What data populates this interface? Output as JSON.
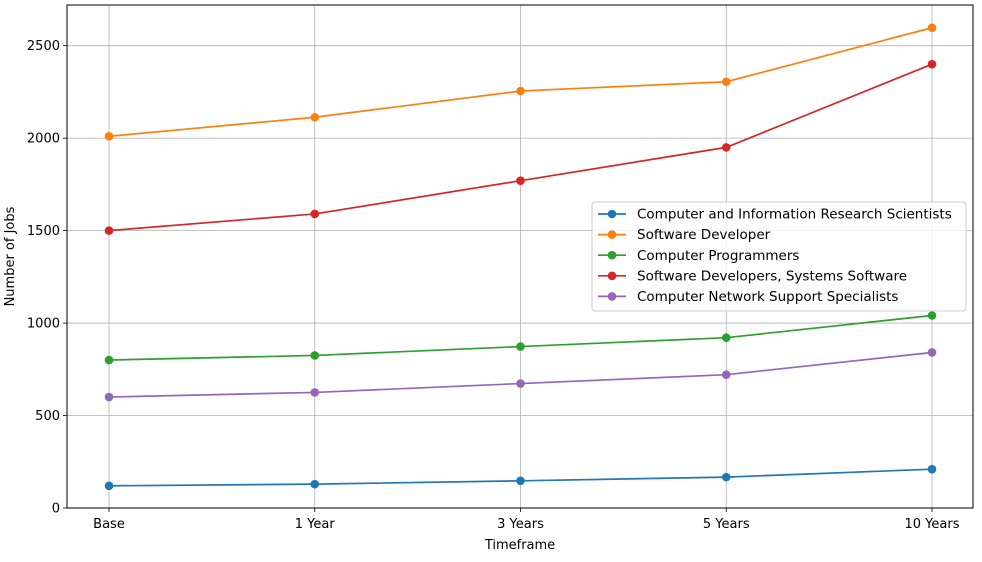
{
  "chart_data": {
    "type": "line",
    "title": "",
    "xlabel": "Timeframe",
    "ylabel": "Number of Jobs",
    "categories": [
      "Base",
      "1 Year",
      "3 Years",
      "5 Years",
      "10 Years"
    ],
    "ylim": [
      0,
      2720
    ],
    "yticks": [
      0,
      500,
      1000,
      1500,
      2000,
      2500
    ],
    "grid": true,
    "legend_position": "center-right",
    "series": [
      {
        "name": "Computer and Information Research Scientists",
        "color": "#1f77b4",
        "values": [
          120,
          129,
          147,
          167,
          210
        ]
      },
      {
        "name": "Software Developer",
        "color": "#ff7f0e",
        "values": [
          2010,
          2113,
          2255,
          2305,
          2597
        ]
      },
      {
        "name": "Computer Programmers",
        "color": "#2ca02c",
        "values": [
          800,
          825,
          873,
          921,
          1041
        ]
      },
      {
        "name": "Software Developers, Systems Software",
        "color": "#d62728",
        "values": [
          1500,
          1590,
          1770,
          1950,
          2400
        ]
      },
      {
        "name": "Computer Network Support Specialists",
        "color": "#9467bd",
        "values": [
          600,
          625,
          673,
          721,
          841
        ]
      }
    ]
  }
}
